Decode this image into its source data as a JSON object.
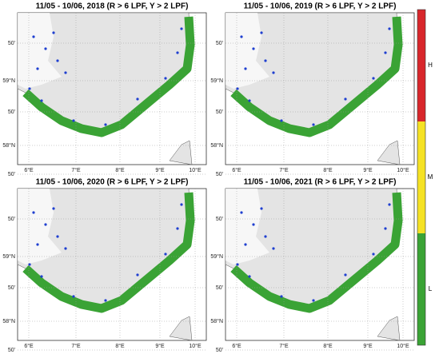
{
  "panels": [
    {
      "title": "11/05 - 10/06, 2018 (R > 6 LPF, Y > 2 LPF)"
    },
    {
      "title": "11/05 - 10/06, 2019 (R > 6 LPF, Y > 2 LPF)"
    },
    {
      "title": "11/05 - 10/06, 2020 (R > 6 LPF, Y > 2 LPF)"
    },
    {
      "title": "11/05 - 10/06, 2021 (R > 6 LPF, Y > 2 LPF)"
    }
  ],
  "lon_labels": [
    "6°E",
    "7°E",
    "8°E",
    "9°E",
    "10°E"
  ],
  "lat_labels": [
    "50'",
    "59°N",
    "50'",
    "58°N",
    "50'"
  ],
  "colorbar": {
    "labels": [
      "H",
      "M",
      "L"
    ]
  }
}
